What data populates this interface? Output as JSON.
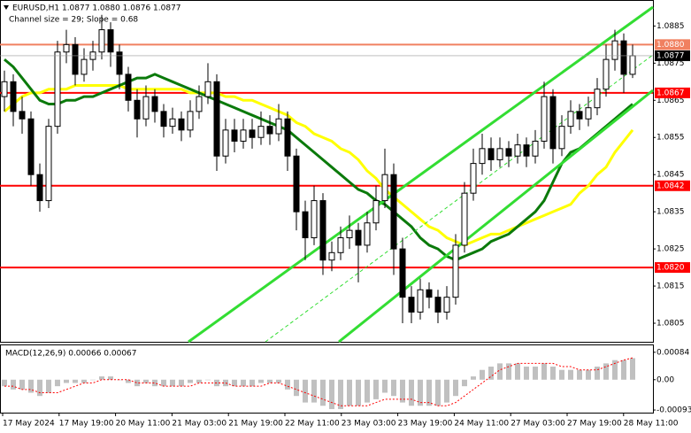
{
  "chart_data": [
    {
      "type": "candlestick",
      "title": "EURUSD,H1  1.0877 1.0880 1.0876 1.0877",
      "subtitle": "Channel size = 29; Slope = 0.68",
      "ylim": [
        1.08,
        1.0892
      ],
      "yticks": [
        1.0885,
        1.0875,
        1.0865,
        1.0855,
        1.0845,
        1.0835,
        1.0825,
        1.0815,
        1.0805
      ],
      "x_labels": [
        "17 May 2024",
        "17 May 19:00",
        "20 May 11:00",
        "21 May 03:00",
        "21 May 19:00",
        "22 May 11:00",
        "23 May 03:00",
        "23 May 19:00",
        "24 May 11:00",
        "27 May 03:00",
        "27 May 19:00",
        "28 May 11:00"
      ],
      "open": [
        1.0866,
        1.087,
        1.0862,
        1.086,
        1.0845,
        1.0838,
        1.0858,
        1.0878,
        1.088,
        1.0872,
        1.0876,
        1.0878,
        1.0884,
        1.0878,
        1.0872,
        1.0865,
        1.086,
        1.0866,
        1.0862,
        1.0858,
        1.086,
        1.0857,
        1.0862,
        1.0866,
        1.087,
        1.085,
        1.0857,
        1.0854,
        1.0857,
        1.0855,
        1.0858,
        1.0856,
        1.086,
        1.085,
        1.0835,
        1.0828,
        1.0838,
        1.0822,
        1.0824,
        1.0828,
        1.083,
        1.0826,
        1.0832,
        1.0838,
        1.0845,
        1.0825,
        1.0812,
        1.0808,
        1.0814,
        1.0812,
        1.0808,
        1.0812,
        1.0826,
        1.084,
        1.0848,
        1.0852,
        1.0849,
        1.0852,
        1.085,
        1.0853,
        1.085,
        1.0854,
        1.0866,
        1.0852,
        1.0858,
        1.0862,
        1.086,
        1.0863,
        1.0868,
        1.0876,
        1.0881,
        1.0872
      ],
      "high": [
        1.0873,
        1.0872,
        1.0866,
        1.0862,
        1.0848,
        1.086,
        1.0881,
        1.0884,
        1.0882,
        1.0879,
        1.0881,
        1.0888,
        1.0886,
        1.088,
        1.0874,
        1.0868,
        1.0869,
        1.0868,
        1.0864,
        1.0863,
        1.0862,
        1.0865,
        1.0869,
        1.0875,
        1.0872,
        1.086,
        1.086,
        1.086,
        1.086,
        1.0862,
        1.0861,
        1.0864,
        1.0862,
        1.0852,
        1.0838,
        1.0842,
        1.084,
        1.0827,
        1.0831,
        1.0834,
        1.0832,
        1.0835,
        1.0842,
        1.0852,
        1.0848,
        1.0828,
        1.0815,
        1.0817,
        1.0816,
        1.0814,
        1.0815,
        1.0829,
        1.0843,
        1.0852,
        1.0856,
        1.0855,
        1.0855,
        1.0854,
        1.0856,
        1.0855,
        1.0857,
        1.087,
        1.0868,
        1.0861,
        1.0865,
        1.0864,
        1.0866,
        1.0871,
        1.088,
        1.0884,
        1.0883,
        1.088
      ],
      "low": [
        1.0862,
        1.0858,
        1.0856,
        1.0842,
        1.0835,
        1.0836,
        1.0856,
        1.0875,
        1.0869,
        1.087,
        1.0873,
        1.0876,
        1.0874,
        1.0868,
        1.0862,
        1.0855,
        1.0858,
        1.0859,
        1.0855,
        1.0856,
        1.0854,
        1.0855,
        1.086,
        1.0864,
        1.0846,
        1.0848,
        1.0851,
        1.0852,
        1.0852,
        1.0853,
        1.0853,
        1.0854,
        1.0846,
        1.083,
        1.0822,
        1.0826,
        1.0818,
        1.0819,
        1.0822,
        1.0825,
        1.0816,
        1.0824,
        1.083,
        1.0836,
        1.0818,
        1.0805,
        1.0805,
        1.0806,
        1.0809,
        1.0805,
        1.0806,
        1.081,
        1.0824,
        1.0838,
        1.0845,
        1.0846,
        1.0847,
        1.0847,
        1.0848,
        1.0847,
        1.0848,
        1.0852,
        1.0848,
        1.085,
        1.0856,
        1.0857,
        1.0858,
        1.0861,
        1.0866,
        1.0873,
        1.0867,
        1.0871
      ],
      "close": [
        1.087,
        1.0862,
        1.086,
        1.0845,
        1.0838,
        1.0858,
        1.0878,
        1.088,
        1.0872,
        1.0876,
        1.0878,
        1.0884,
        1.0878,
        1.0872,
        1.0865,
        1.086,
        1.0866,
        1.0862,
        1.0858,
        1.086,
        1.0857,
        1.0862,
        1.0866,
        1.087,
        1.085,
        1.0857,
        1.0854,
        1.0857,
        1.0855,
        1.0858,
        1.0856,
        1.086,
        1.085,
        1.0835,
        1.0828,
        1.0838,
        1.0822,
        1.0824,
        1.0828,
        1.083,
        1.0826,
        1.0832,
        1.0838,
        1.0845,
        1.0825,
        1.0812,
        1.0808,
        1.0814,
        1.0812,
        1.0808,
        1.0812,
        1.0826,
        1.084,
        1.0848,
        1.0852,
        1.0849,
        1.0852,
        1.085,
        1.0853,
        1.085,
        1.0854,
        1.0866,
        1.0852,
        1.0858,
        1.0862,
        1.086,
        1.0863,
        1.0868,
        1.0876,
        1.0881,
        1.0872,
        1.0877
      ],
      "moving_averages": [
        {
          "color": "#ffff00",
          "values": [
            1.0862,
            1.0864,
            1.0866,
            1.0867,
            1.0867,
            1.0868,
            1.0868,
            1.0868,
            1.0869,
            1.0869,
            1.0869,
            1.0869,
            1.0869,
            1.0869,
            1.0868,
            1.0868,
            1.0868,
            1.0868,
            1.0868,
            1.0868,
            1.0868,
            1.0867,
            1.0867,
            1.0867,
            1.0867,
            1.0866,
            1.0866,
            1.0865,
            1.0865,
            1.0864,
            1.0863,
            1.0862,
            1.0861,
            1.0859,
            1.0858,
            1.0856,
            1.0855,
            1.0854,
            1.0852,
            1.0851,
            1.0849,
            1.0846,
            1.0844,
            1.0841,
            1.0839,
            1.0837,
            1.0835,
            1.0833,
            1.0831,
            1.083,
            1.0828,
            1.0827,
            1.0826,
            1.0827,
            1.0828,
            1.0829,
            1.0829,
            1.083,
            1.0831,
            1.0832,
            1.0833,
            1.0834,
            1.0835,
            1.0836,
            1.0837,
            1.084,
            1.0842,
            1.0845,
            1.0847,
            1.0851,
            1.0854,
            1.0857
          ]
        },
        {
          "color": "#0b7a0b",
          "values": [
            1.0876,
            1.0874,
            1.0871,
            1.0868,
            1.0865,
            1.0864,
            1.0864,
            1.0865,
            1.0865,
            1.0866,
            1.0866,
            1.0867,
            1.0868,
            1.0869,
            1.087,
            1.0871,
            1.0871,
            1.0872,
            1.0871,
            1.087,
            1.0869,
            1.0868,
            1.0867,
            1.0866,
            1.0865,
            1.0864,
            1.0863,
            1.0862,
            1.0861,
            1.086,
            1.0859,
            1.0858,
            1.0857,
            1.0855,
            1.0853,
            1.0851,
            1.0849,
            1.0847,
            1.0845,
            1.0843,
            1.0841,
            1.084,
            1.0838,
            1.0837,
            1.0835,
            1.0833,
            1.0831,
            1.0828,
            1.0826,
            1.0825,
            1.0823,
            1.0822,
            1.0823,
            1.0824,
            1.0825,
            1.0827,
            1.0828,
            1.0829,
            1.0831,
            1.0833,
            1.0835,
            1.0838,
            1.0843,
            1.0848,
            1.0851,
            1.0852,
            1.0854,
            1.0856,
            1.0858,
            1.086,
            1.0862,
            1.0864
          ]
        }
      ],
      "levels": [
        {
          "value": 1.088,
          "label": "1.0880",
          "color": "#f08060"
        },
        {
          "value": 1.0867,
          "label": "1.0867",
          "color": "#ff0000"
        },
        {
          "value": 1.0842,
          "label": "1.0842",
          "color": "#ff0000"
        },
        {
          "value": 1.082,
          "label": "1.0820",
          "color": "#ff0000"
        }
      ],
      "last_price": {
        "value": 1.0877,
        "label": "1.0877"
      }
    },
    {
      "type": "bar",
      "title": "MACD(12,26,9) 0.00066 0.00067",
      "color": "#c0c0c0",
      "ylim": [
        -0.00101,
        0.00108
      ],
      "yticks": [
        0.00084,
        {
          "value": 0,
          "label": "0.00"
        },
        -0.00093
      ],
      "values": [
        -0.0002,
        -0.0003,
        -0.0003,
        -0.0004,
        -0.0005,
        -0.0004,
        -0.0002,
        -0.0001,
        -0.0001,
        -0.0001,
        0,
        0.0001,
        0.0001,
        0,
        -0.0001,
        -0.0002,
        -0.0001,
        -0.0002,
        -0.0002,
        -0.0002,
        -0.0002,
        -0.0001,
        -0.0001,
        0,
        -0.0002,
        -0.0002,
        -0.0002,
        -0.0002,
        -0.0002,
        -0.0001,
        -0.0001,
        -0.0001,
        -0.0003,
        -0.0005,
        -0.0007,
        -0.0007,
        -0.0008,
        -0.0009,
        -0.0009,
        -0.0008,
        -0.0008,
        -0.0007,
        -0.0006,
        -0.0004,
        -0.0005,
        -0.0007,
        -0.0008,
        -0.0008,
        -0.0008,
        -0.0008,
        -0.0007,
        -0.0005,
        -0.0002,
        0.0001,
        0.0003,
        0.0004,
        0.0005,
        0.0005,
        0.0005,
        0.0004,
        0.0004,
        0.0005,
        0.0004,
        0.0003,
        0.0003,
        0.0003,
        0.0003,
        0.0004,
        0.0005,
        0.0006,
        0.0006,
        0.00066
      ],
      "signal": {
        "color": "#ff0000",
        "values": [
          -0.0002,
          -0.0002,
          -0.0003,
          -0.0003,
          -0.0004,
          -0.0004,
          -0.0004,
          -0.0003,
          -0.0002,
          -0.0001,
          -0.0001,
          0,
          0,
          0,
          0,
          -0.0001,
          -0.0001,
          -0.0001,
          -0.0002,
          -0.0002,
          -0.0002,
          -0.0002,
          -0.0001,
          -0.0001,
          -0.0001,
          -0.0001,
          -0.0002,
          -0.0002,
          -0.0002,
          -0.0002,
          -0.0001,
          -0.0001,
          -0.0002,
          -0.0003,
          -0.0004,
          -0.0005,
          -0.0006,
          -0.0007,
          -0.0008,
          -0.0008,
          -0.0008,
          -0.0008,
          -0.0007,
          -0.0006,
          -0.0006,
          -0.0006,
          -0.0006,
          -0.0007,
          -0.0007,
          -0.0008,
          -0.0008,
          -0.0007,
          -0.0005,
          -0.0003,
          -0.0001,
          0.0001,
          0.0003,
          0.0004,
          0.0005,
          0.0005,
          0.0005,
          0.0005,
          0.0005,
          0.0004,
          0.0004,
          0.0003,
          0.0003,
          0.0003,
          0.0004,
          0.0005,
          0.0006,
          0.00067
        ]
      }
    }
  ]
}
